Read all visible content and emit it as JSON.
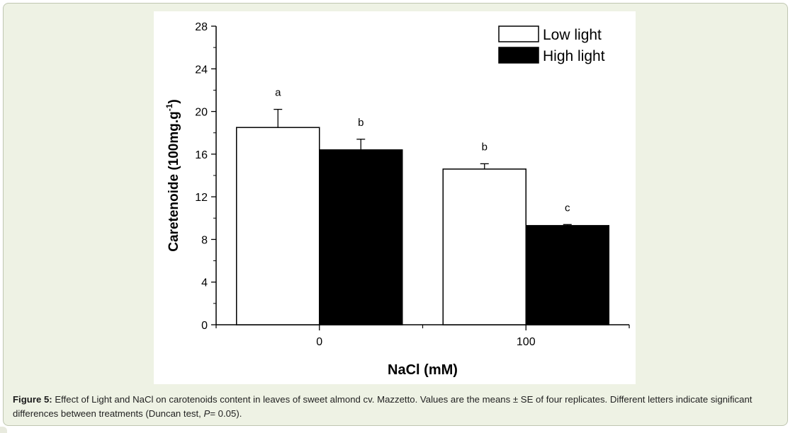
{
  "caption": {
    "label": "Figure 5:",
    "text_before_italic": " Effect of Light and NaCl on carotenoids content in leaves of sweet almond cv. Mazzetto. Values are the means ± SE of four replicates. Different letters indicate significant differences between treatments (Duncan test, ",
    "italic": "P",
    "text_after_italic": "= 0.05)."
  },
  "chart_data": {
    "type": "bar",
    "title": "",
    "xlabel": "NaCl (mM)",
    "ylabel": "Caretenoide (100mg.g-1)",
    "ylabel_main": "Caretenoide (100mg.g",
    "ylabel_sup": "-1",
    "ylabel_close": ")",
    "categories": [
      "0",
      "100"
    ],
    "ylim": [
      0,
      28
    ],
    "yticks": [
      0,
      4,
      8,
      12,
      16,
      20,
      24,
      28
    ],
    "ytick_labels": [
      "0",
      "4",
      "8",
      "12",
      "16",
      "20",
      "24",
      "28"
    ],
    "legend_position": "top-right",
    "grid": false,
    "series": [
      {
        "name": "Low light",
        "fill": "#ffffff",
        "values": [
          18.5,
          14.6
        ],
        "errors": [
          1.7,
          0.5
        ],
        "letters": [
          "a",
          "b"
        ]
      },
      {
        "name": "High light",
        "fill": "#000000",
        "values": [
          16.4,
          9.3
        ],
        "errors": [
          1.0,
          0.1
        ],
        "letters": [
          "b",
          "c"
        ]
      }
    ]
  }
}
